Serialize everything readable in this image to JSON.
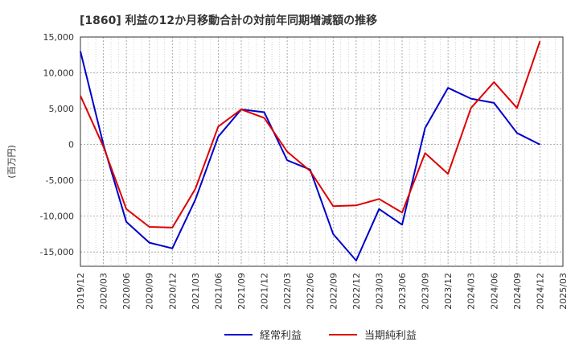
{
  "chart_data": {
    "type": "line",
    "title": "[1860]  利益の12か月移動合計の対前年同期増減額の推移",
    "ylabel": "(百万円)",
    "xlabel": "",
    "ylim": [
      -17000,
      15000
    ],
    "yticks": [
      15000,
      10000,
      5000,
      0,
      -5000,
      -10000,
      -15000
    ],
    "ytick_labels": [
      "15,000",
      "10,000",
      "5,000",
      "0",
      "-5,000",
      "-10,000",
      "-15,000"
    ],
    "categories": [
      "2019/12",
      "2020/03",
      "2020/06",
      "2020/09",
      "2020/12",
      "2021/03",
      "2021/06",
      "2021/09",
      "2021/12",
      "2022/03",
      "2022/06",
      "2022/09",
      "2022/12",
      "2023/03",
      "2023/06",
      "2023/09",
      "2023/12",
      "2024/03",
      "2024/06",
      "2024/09",
      "2024/12",
      "2025/03"
    ],
    "grid": true,
    "legend_position": "bottom",
    "series": [
      {
        "name": "経常利益",
        "color": "#0000cc",
        "values": [
          13000,
          0,
          -10800,
          -13700,
          -14500,
          -7700,
          1100,
          4900,
          4500,
          -2200,
          -3500,
          -12500,
          -16200,
          -9000,
          -11200,
          2300,
          7900,
          6400,
          5800,
          1600,
          0,
          null
        ]
      },
      {
        "name": "当期純利益",
        "color": "#dd0000",
        "values": [
          6800,
          -300,
          -9000,
          -11500,
          -11600,
          -6200,
          2500,
          4900,
          3700,
          -1000,
          -3700,
          -8600,
          -8500,
          -7600,
          -9500,
          -1200,
          -4100,
          5100,
          8700,
          5100,
          14400,
          null
        ]
      }
    ]
  }
}
